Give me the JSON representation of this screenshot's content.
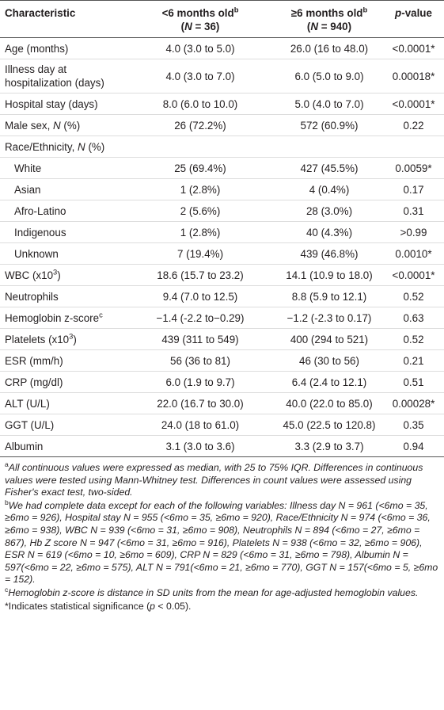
{
  "table": {
    "header": [
      [
        [
          "Characteristic"
        ]
      ],
      [
        [
          "<6 months old",
          {
            "text": "b",
            "style": "sup"
          }
        ],
        [
          "(",
          {
            "text": "N",
            "style": "italic"
          },
          " = 36)"
        ]
      ],
      [
        [
          "≥6 months old",
          {
            "text": "b",
            "style": "sup"
          }
        ],
        [
          "(",
          {
            "text": "N",
            "style": "italic"
          },
          " = 940)"
        ]
      ],
      [
        [
          {
            "text": "p",
            "style": "italic"
          },
          "-value"
        ]
      ]
    ],
    "rows": [
      {
        "cells": [
          [
            "Age (months)"
          ],
          [
            "4.0 (3.0 to 5.0)"
          ],
          [
            "26.0 (16 to 48.0)"
          ],
          [
            "<0.0001*"
          ]
        ]
      },
      {
        "cells": [
          [
            "Illness day at hospitalization (days)"
          ],
          [
            "4.0 (3.0 to 7.0)"
          ],
          [
            "6.0 (5.0 to 9.0)"
          ],
          [
            "0.00018*"
          ]
        ]
      },
      {
        "cells": [
          [
            "Hospital stay (days)"
          ],
          [
            "8.0 (6.0 to 10.0)"
          ],
          [
            "5.0 (4.0 to 7.0)"
          ],
          [
            "<0.0001*"
          ]
        ]
      },
      {
        "cells": [
          [
            "Male sex, ",
            {
              "text": "N",
              "style": "italic"
            },
            " (%)"
          ],
          [
            "26 (72.2%)"
          ],
          [
            "572 (60.9%)"
          ],
          [
            "0.22"
          ]
        ]
      },
      {
        "cells": [
          [
            "Race/Ethnicity, ",
            {
              "text": "N",
              "style": "italic"
            },
            " (%)"
          ],
          [],
          [],
          []
        ]
      },
      {
        "indent": true,
        "cells": [
          [
            "White"
          ],
          [
            "25 (69.4%)"
          ],
          [
            "427 (45.5%)"
          ],
          [
            "0.0059*"
          ]
        ]
      },
      {
        "indent": true,
        "cells": [
          [
            "Asian"
          ],
          [
            "1 (2.8%)"
          ],
          [
            "4 (0.4%)"
          ],
          [
            "0.17"
          ]
        ]
      },
      {
        "indent": true,
        "cells": [
          [
            "Afro-Latino"
          ],
          [
            "2 (5.6%)"
          ],
          [
            "28 (3.0%)"
          ],
          [
            "0.31"
          ]
        ]
      },
      {
        "indent": true,
        "cells": [
          [
            "Indigenous"
          ],
          [
            "1 (2.8%)"
          ],
          [
            "40 (4.3%)"
          ],
          [
            ">0.99"
          ]
        ]
      },
      {
        "indent": true,
        "cells": [
          [
            "Unknown"
          ],
          [
            "7 (19.4%)"
          ],
          [
            "439 (46.8%)"
          ],
          [
            "0.0010*"
          ]
        ]
      },
      {
        "cells": [
          [
            "WBC (x10",
            {
              "text": "3",
              "style": "sup"
            },
            ")"
          ],
          [
            "18.6 (15.7 to 23.2)"
          ],
          [
            "14.1 (10.9 to 18.0)"
          ],
          [
            "<0.0001*"
          ]
        ]
      },
      {
        "cells": [
          [
            "Neutrophils"
          ],
          [
            "9.4 (7.0 to 12.5)"
          ],
          [
            "8.8 (5.9 to 12.1)"
          ],
          [
            "0.52"
          ]
        ]
      },
      {
        "cells": [
          [
            "Hemoglobin z-score",
            {
              "text": "c",
              "style": "sup"
            }
          ],
          [
            "−1.4 (-2.2 to−0.29)"
          ],
          [
            "−1.2 (-2.3 to 0.17)"
          ],
          [
            "0.63"
          ]
        ]
      },
      {
        "cells": [
          [
            "Platelets (x10",
            {
              "text": "3",
              "style": "sup"
            },
            ")"
          ],
          [
            "439 (311 to 549)"
          ],
          [
            "400 (294 to 521)"
          ],
          [
            "0.52"
          ]
        ]
      },
      {
        "cells": [
          [
            "ESR (mm/h)"
          ],
          [
            "56 (36 to 81)"
          ],
          [
            "46 (30 to 56)"
          ],
          [
            "0.21"
          ]
        ]
      },
      {
        "cells": [
          [
            "CRP (mg/dl)"
          ],
          [
            "6.0 (1.9 to 9.7)"
          ],
          [
            "6.4 (2.4 to 12.1)"
          ],
          [
            "0.51"
          ]
        ]
      },
      {
        "cells": [
          [
            "ALT (U/L)"
          ],
          [
            "22.0 (16.7 to 30.0)"
          ],
          [
            "40.0 (22.0 to 85.0)"
          ],
          [
            "0.00028*"
          ]
        ]
      },
      {
        "cells": [
          [
            "GGT (U/L)"
          ],
          [
            "24.0 (18 to 61.0)"
          ],
          [
            "45.0 (22.5 to 120.8)"
          ],
          [
            "0.35"
          ]
        ]
      },
      {
        "cells": [
          [
            "Albumin"
          ],
          [
            "3.1 (3.0 to 3.6)"
          ],
          [
            "3.3 (2.9 to 3.7)"
          ],
          [
            "0.94"
          ]
        ]
      }
    ]
  },
  "footnotes": [
    [
      {
        "text": "a",
        "style": "sup"
      },
      {
        "text": "All continuous values were expressed as median, with 25 to 75% IQR. Differences in continuous values were tested using Mann-Whitney test. Differences in count values were assessed using Fisher's exact test, two-sided.",
        "style": "italic"
      }
    ],
    [
      {
        "text": "b",
        "style": "sup"
      },
      {
        "text": "We had complete data except for each of the following variables: Illness day N = 961 (<6mo = 35, ≥6mo = 926), Hospital stay N = 955 (<6mo = 35, ≥6mo = 920), Race/Ethnicity N = 974 (<6mo = 36, ≥6mo = 938), WBC N = 939 (<6mo = 31, ≥6mo = 908), Neutrophils N = 894 (<6mo = 27, ≥6mo = 867), Hb Z score N = 947 (<6mo = 31, ≥6mo = 916), Platelets N = 938 (<6mo = 32, ≥6mo = 906), ESR N = 619 (<6mo = 10, ≥6mo = 609), CRP N = 829 (<6mo = 31, ≥6mo = 798), Albumin N = 597(<6mo = 22, ≥6mo = 575), ALT N = 791(<6mo = 21, ≥6mo = 770), GGT N = 157(<6mo = 5, ≥6mo = 152).",
        "style": "italic"
      }
    ],
    [
      {
        "text": "c",
        "style": "sup"
      },
      {
        "text": "Hemoglobin z-score is distance in SD units from the mean for age-adjusted hemoglobin values.",
        "style": "italic"
      }
    ],
    [
      "*Indicates statistical significance (",
      {
        "text": "p",
        "style": "italic"
      },
      " < 0.05)."
    ]
  ]
}
